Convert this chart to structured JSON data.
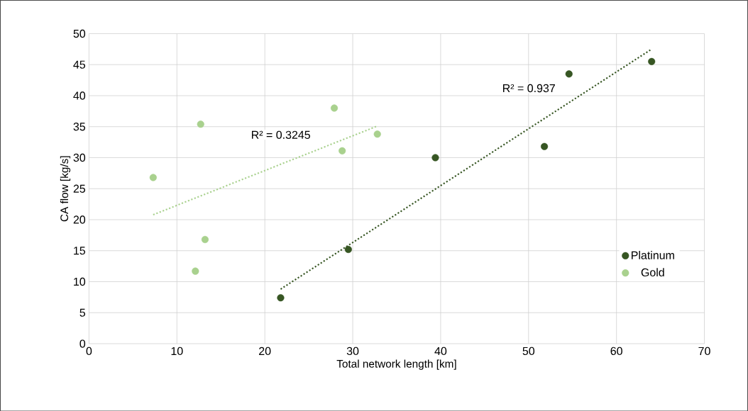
{
  "chart_data": {
    "type": "scatter",
    "xlabel": "Total network length [km]",
    "ylabel": "CA flow [kg/s]",
    "xlim": [
      0,
      70
    ],
    "xticks": [
      0,
      10,
      20,
      30,
      40,
      50,
      60,
      70
    ],
    "ylim": [
      0,
      50
    ],
    "yticks": [
      0,
      5,
      10,
      15,
      20,
      25,
      30,
      35,
      40,
      45,
      50
    ],
    "grid": true,
    "legend": "bottom right",
    "series": [
      {
        "name": "Platinum",
        "marker": "circle",
        "color": "#375623",
        "x": [
          21.8,
          29.5,
          39.4,
          51.8,
          54.6,
          64.0
        ],
        "values": [
          7.4,
          15.2,
          30.0,
          31.8,
          43.5,
          45.5
        ]
      },
      {
        "name": "Gold",
        "marker": "circle",
        "color": "#a9d18e",
        "x": [
          7.3,
          12.1,
          12.7,
          13.2,
          27.9,
          28.8,
          32.8
        ],
        "values": [
          26.8,
          11.7,
          35.4,
          16.8,
          38.0,
          31.1,
          33.8
        ]
      },
      {
        "type": "line",
        "marker": "none",
        "line_style": "dotted",
        "color": "#375623",
        "x": [
          21.8,
          64.0
        ],
        "values": [
          8.8,
          47.5
        ]
      },
      {
        "type": "line",
        "marker": "none",
        "line_style": "dotted",
        "color": "#a9d18e",
        "x": [
          7.3,
          32.8
        ],
        "values": [
          20.8,
          35.1
        ]
      }
    ],
    "annotations": [
      "R² = 0.937",
      "R² = 0.3245"
    ]
  }
}
